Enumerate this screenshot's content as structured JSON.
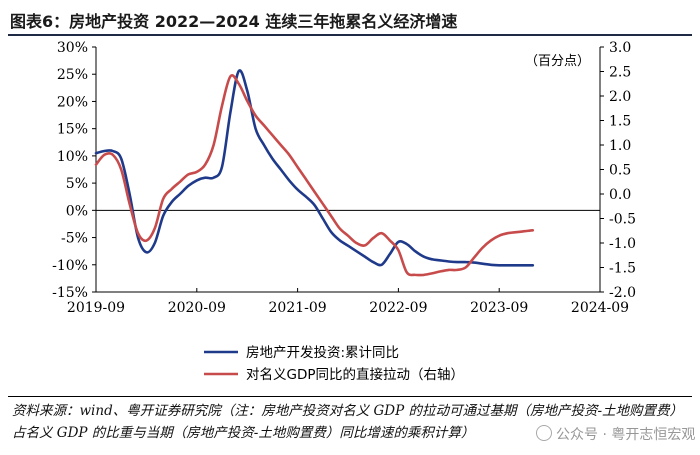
{
  "header": {
    "title": "图表6：房地产投资 2022—2024 连续三年拖累名义经济增速"
  },
  "chart_data": {
    "type": "line",
    "title": "房地产投资 2022—2024 连续三年拖累名义经济增速",
    "x_ticks": [
      "2019-09",
      "2020-09",
      "2021-09",
      "2022-09",
      "2023-09",
      "2024-09"
    ],
    "y_left": {
      "ticks": [
        "30%",
        "25%",
        "20%",
        "15%",
        "10%",
        "5%",
        "0%",
        "-5%",
        "-10%",
        "-15%"
      ],
      "range": [
        -15,
        30
      ]
    },
    "y_right": {
      "label": "（百分点）",
      "ticks": [
        "3.0",
        "2.5",
        "2.0",
        "1.5",
        "1.0",
        "0.5",
        "0.0",
        "-0.5",
        "-1.0",
        "-1.5",
        "-2.0"
      ],
      "range": [
        -2.0,
        3.0
      ]
    },
    "x_range": [
      0,
      60
    ],
    "series": [
      {
        "name": "房地产开发投资:累计同比",
        "axis": "left",
        "color": "#1f3a8a",
        "points": [
          [
            0,
            10.5
          ],
          [
            1,
            10.9
          ],
          [
            2,
            10.9
          ],
          [
            3,
            9.5
          ],
          [
            4,
            3
          ],
          [
            5,
            -5
          ],
          [
            6,
            -7.7
          ],
          [
            7,
            -6
          ],
          [
            8,
            -1
          ],
          [
            9,
            1.5
          ],
          [
            10,
            3
          ],
          [
            11,
            4.5
          ],
          [
            12,
            5.5
          ],
          [
            13,
            6
          ],
          [
            14,
            6
          ],
          [
            15,
            8
          ],
          [
            16,
            18
          ],
          [
            17,
            25.6
          ],
          [
            18,
            22
          ],
          [
            19,
            15
          ],
          [
            20,
            12
          ],
          [
            21,
            9.5
          ],
          [
            22,
            7.5
          ],
          [
            23,
            5.5
          ],
          [
            24,
            3.8
          ],
          [
            25,
            2.5
          ],
          [
            26,
            1
          ],
          [
            27,
            -1.5
          ],
          [
            28,
            -4
          ],
          [
            29,
            -5.5
          ],
          [
            30,
            -6.5
          ],
          [
            31,
            -7.5
          ],
          [
            32,
            -8.5
          ],
          [
            33,
            -9.5
          ],
          [
            34,
            -10
          ],
          [
            35,
            -8
          ],
          [
            36,
            -5.8
          ],
          [
            37,
            -6.2
          ],
          [
            38,
            -7.5
          ],
          [
            39,
            -8.5
          ],
          [
            40,
            -9
          ],
          [
            41,
            -9.2
          ],
          [
            42,
            -9.4
          ],
          [
            43,
            -9.5
          ],
          [
            44,
            -9.5
          ],
          [
            45,
            -9.6
          ],
          [
            46,
            -9.8
          ],
          [
            47,
            -10
          ],
          [
            48,
            -10.1
          ],
          [
            49,
            -10.1
          ],
          [
            50,
            -10.1
          ],
          [
            51,
            -10.1
          ],
          [
            52,
            -10.1
          ]
        ]
      },
      {
        "name": "对名义GDP同比的直接拉动（右轴）",
        "axis": "right",
        "color": "#c84b4b",
        "points": [
          [
            0,
            0.6
          ],
          [
            1,
            0.8
          ],
          [
            2,
            0.8
          ],
          [
            3,
            0.5
          ],
          [
            4,
            -0.2
          ],
          [
            5,
            -0.8
          ],
          [
            6,
            -0.95
          ],
          [
            7,
            -0.7
          ],
          [
            8,
            -0.1
          ],
          [
            9,
            0.1
          ],
          [
            10,
            0.25
          ],
          [
            11,
            0.4
          ],
          [
            12,
            0.45
          ],
          [
            13,
            0.6
          ],
          [
            14,
            1.0
          ],
          [
            15,
            1.8
          ],
          [
            16,
            2.4
          ],
          [
            17,
            2.25
          ],
          [
            18,
            1.9
          ],
          [
            19,
            1.6
          ],
          [
            20,
            1.4
          ],
          [
            21,
            1.2
          ],
          [
            22,
            1.0
          ],
          [
            23,
            0.8
          ],
          [
            24,
            0.55
          ],
          [
            25,
            0.3
          ],
          [
            26,
            0.05
          ],
          [
            27,
            -0.2
          ],
          [
            28,
            -0.45
          ],
          [
            29,
            -0.7
          ],
          [
            30,
            -0.85
          ],
          [
            31,
            -1.0
          ],
          [
            32,
            -1.05
          ],
          [
            33,
            -0.9
          ],
          [
            34,
            -0.8
          ],
          [
            35,
            -0.95
          ],
          [
            36,
            -1.15
          ],
          [
            37,
            -1.6
          ],
          [
            38,
            -1.65
          ],
          [
            39,
            -1.65
          ],
          [
            40,
            -1.62
          ],
          [
            41,
            -1.58
          ],
          [
            42,
            -1.55
          ],
          [
            43,
            -1.55
          ],
          [
            44,
            -1.5
          ],
          [
            45,
            -1.3
          ],
          [
            46,
            -1.1
          ],
          [
            47,
            -0.95
          ],
          [
            48,
            -0.85
          ],
          [
            49,
            -0.8
          ],
          [
            50,
            -0.78
          ],
          [
            51,
            -0.76
          ],
          [
            52,
            -0.74
          ]
        ]
      }
    ],
    "legend": [
      {
        "label": "房地产开发投资:累计同比",
        "color": "#1f3a8a"
      },
      {
        "label": "对名义GDP同比的直接拉动（右轴）",
        "color": "#c84b4b"
      }
    ],
    "legend_position": "bottom"
  },
  "footer": {
    "source": "资料来源：wind、粤开证券研究院（注：房地产投资对名义 GDP 的拉动可通过基期（房地产投资-土地购置费）占名义 GDP 的比重与当期（房地产投资-土地购置费）同比增速的乘积计算）",
    "watermark": "公众号 · 粤开志恒宏观"
  },
  "colors": {
    "title_rule": "#1f2a44",
    "axis": "#000000"
  }
}
